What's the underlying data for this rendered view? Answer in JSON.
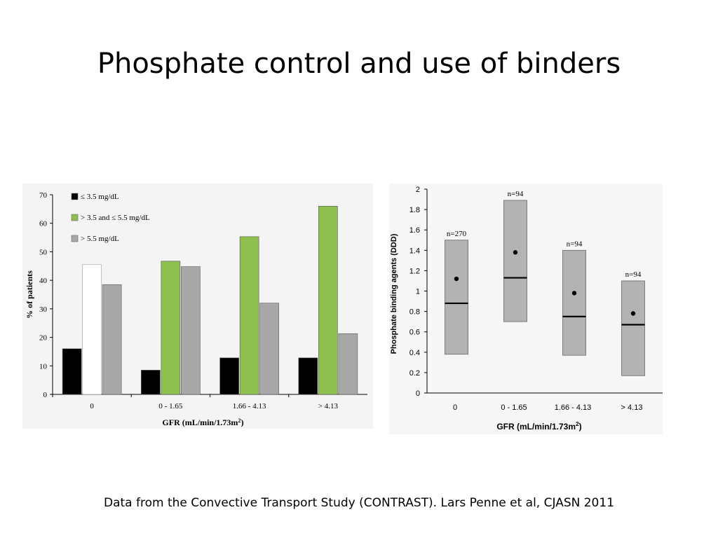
{
  "slide": {
    "title": "Phosphate control and use of binders",
    "caption": "Data from the Convective Transport Study (CONTRAST). Lars Penne et al, CJASN 2011"
  },
  "colors": {
    "black": "#000000",
    "white": "#ffffff",
    "green": "#8fbf4f",
    "gray": "#a8a8a8",
    "box": "#b3b3b3"
  },
  "chart_data": [
    {
      "type": "bar",
      "xlabel": "GFR (mL/min/1.73m²)",
      "ylabel": "% of patients",
      "ylim": [
        0,
        70
      ],
      "yticks": [
        "0",
        "10",
        "20",
        "30",
        "40",
        "50",
        "60",
        "70"
      ],
      "categories": [
        "0",
        "0 - 1.65",
        "1.66 - 4.13",
        "> 4.13"
      ],
      "legend_position": "top-left",
      "series": [
        {
          "name": "≤ 3.5 mg/dL",
          "color_key": "black",
          "values": [
            16,
            8.5,
            12.8,
            12.8
          ]
        },
        {
          "name": "> 3.5 and ≤ 5.5 mg/dL",
          "color_key": "green",
          "values": [
            45.5,
            46.7,
            55.3,
            66
          ]
        },
        {
          "name": "> 5.5 mg/dL",
          "color_key": "gray",
          "values": [
            38.5,
            44.8,
            32,
            21.3
          ]
        }
      ],
      "first_category_series2_color_key": "white"
    },
    {
      "type": "box",
      "xlabel": "GFR (mL/min/1.73m²)",
      "ylabel": "Phosphate binding agents (DDD)",
      "ylim": [
        0,
        2
      ],
      "yticks": [
        "0",
        "0.2",
        "0.4",
        "0.6",
        "0.8",
        "1",
        "1.2",
        "1.4",
        "1.6",
        "1.8",
        "2"
      ],
      "categories": [
        "0",
        "0 - 1.65",
        "1.66 - 4.13",
        "> 4.13"
      ],
      "boxes": [
        {
          "n_label": "n=270",
          "low": 0.38,
          "high": 1.5,
          "median": 0.88,
          "mean": 1.12
        },
        {
          "n_label": "n=94",
          "low": 0.7,
          "high": 1.89,
          "median": 1.13,
          "mean": 1.38
        },
        {
          "n_label": "n=94",
          "low": 0.37,
          "high": 1.4,
          "median": 0.75,
          "mean": 0.98
        },
        {
          "n_label": "n=94",
          "low": 0.17,
          "high": 1.1,
          "median": 0.67,
          "mean": 0.78
        }
      ]
    }
  ]
}
